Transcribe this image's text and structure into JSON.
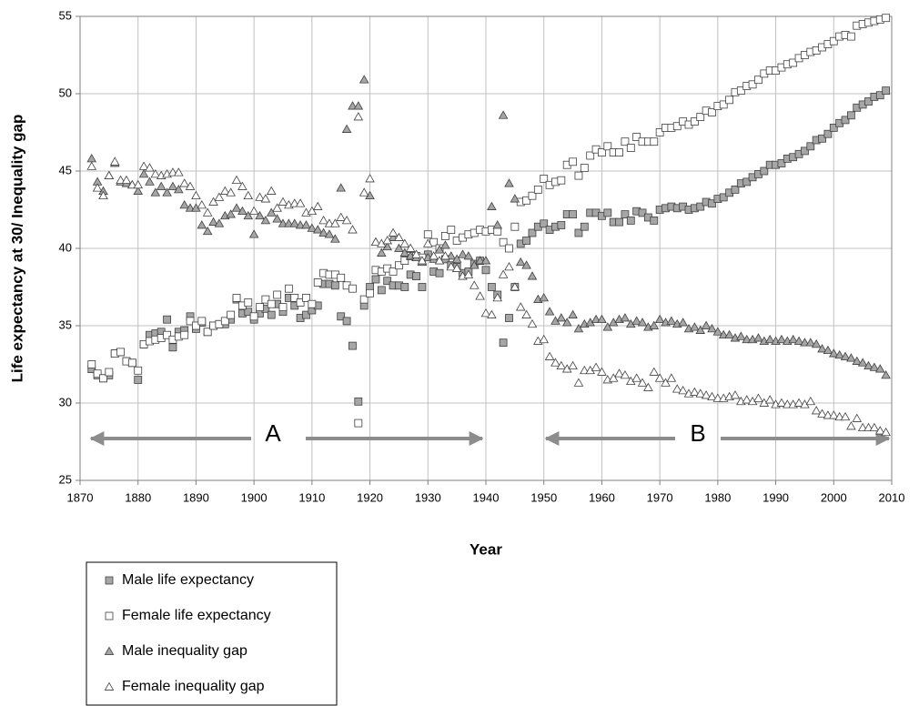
{
  "chart_data": {
    "type": "scatter",
    "x_label": "Year",
    "y_label": "Life expectancy at 30/ Inequality gap",
    "annotations": [
      "A",
      "B"
    ],
    "xlim": [
      1870,
      2010
    ],
    "xticks": [
      1870,
      1880,
      1890,
      1900,
      1910,
      1920,
      1930,
      1940,
      1950,
      1960,
      1970,
      1980,
      1990,
      2000,
      2010
    ],
    "ylim": [
      25,
      55
    ],
    "yticks": [
      25,
      30,
      35,
      40,
      45,
      50,
      55
    ],
    "grid": true,
    "legend": "bottom-left",
    "x": [
      1872,
      1873,
      1874,
      1875,
      1876,
      1877,
      1878,
      1879,
      1880,
      1881,
      1882,
      1883,
      1884,
      1885,
      1886,
      1887,
      1888,
      1889,
      1890,
      1891,
      1892,
      1893,
      1894,
      1895,
      1896,
      1897,
      1898,
      1899,
      1900,
      1901,
      1902,
      1903,
      1904,
      1905,
      1906,
      1907,
      1908,
      1909,
      1910,
      1911,
      1912,
      1913,
      1914,
      1915,
      1916,
      1917,
      1918,
      1919,
      1920,
      1921,
      1922,
      1923,
      1924,
      1925,
      1926,
      1927,
      1928,
      1929,
      1930,
      1931,
      1932,
      1933,
      1934,
      1935,
      1936,
      1937,
      1938,
      1939,
      1940,
      1941,
      1942,
      1943,
      1944,
      1945,
      1946,
      1947,
      1948,
      1949,
      1950,
      1951,
      1952,
      1953,
      1954,
      1955,
      1956,
      1957,
      1958,
      1959,
      1960,
      1961,
      1962,
      1963,
      1964,
      1965,
      1966,
      1967,
      1968,
      1969,
      1970,
      1971,
      1972,
      1973,
      1974,
      1975,
      1976,
      1977,
      1978,
      1979,
      1980,
      1981,
      1982,
      1983,
      1984,
      1985,
      1986,
      1987,
      1988,
      1989,
      1990,
      1991,
      1992,
      1993,
      1994,
      1995,
      1996,
      1997,
      1998,
      1999,
      2000,
      2001,
      2002,
      2003,
      2004,
      2005,
      2006,
      2007,
      2008,
      2009
    ],
    "series": [
      {
        "name": "Male life expectancy",
        "marker": "square",
        "color": "#a6a6a6",
        "values": [
          32.2,
          31.8,
          31.6,
          31.8,
          33.2,
          33.3,
          32.7,
          32.6,
          31.5,
          33.8,
          34.4,
          34.5,
          34.6,
          35.4,
          33.6,
          34.6,
          34.7,
          35.6,
          34.8,
          35.2,
          34.6,
          35.0,
          35.1,
          35.1,
          35.4,
          36.7,
          35.8,
          35.9,
          35.4,
          35.8,
          36.1,
          35.7,
          36.4,
          35.9,
          36.8,
          36.3,
          35.5,
          35.7,
          36.0,
          36.3,
          37.7,
          37.7,
          37.6,
          35.6,
          35.3,
          33.7,
          30.1,
          36.3,
          37.5,
          38.0,
          37.3,
          37.9,
          37.6,
          37.6,
          37.5,
          38.3,
          38.2,
          37.5,
          39.6,
          38.5,
          38.4,
          39.3,
          38.9,
          38.8,
          38.4,
          38.5,
          39.0,
          39.2,
          38.6,
          37.5,
          37.0,
          33.9,
          35.5,
          37.5,
          40.3,
          40.5,
          41.0,
          41.4,
          41.6,
          41.2,
          41.4,
          41.5,
          42.2,
          42.2,
          41.0,
          41.4,
          42.3,
          42.3,
          42.1,
          42.3,
          41.7,
          41.7,
          42.2,
          41.8,
          42.4,
          42.3,
          42.0,
          41.8,
          42.5,
          42.6,
          42.7,
          42.6,
          42.7,
          42.5,
          42.6,
          42.7,
          43.0,
          42.9,
          43.2,
          43.3,
          43.6,
          43.8,
          44.2,
          44.3,
          44.6,
          44.8,
          45.0,
          45.4,
          45.4,
          45.5,
          45.8,
          45.9,
          46.1,
          46.3,
          46.6,
          47.0,
          47.1,
          47.4,
          47.8,
          48.1,
          48.3,
          48.6,
          49.1,
          49.3,
          49.5,
          49.8,
          49.9,
          50.2
        ]
      },
      {
        "name": "Female life expectancy",
        "marker": "square",
        "color": "#ffffff",
        "values": [
          32.5,
          31.9,
          31.6,
          32.0,
          33.2,
          33.3,
          32.7,
          32.6,
          32.1,
          33.8,
          34.0,
          34.1,
          34.2,
          34.4,
          34.1,
          34.3,
          34.4,
          35.3,
          35.0,
          35.3,
          34.6,
          35.0,
          35.1,
          35.3,
          35.7,
          36.8,
          36.3,
          36.5,
          35.6,
          36.2,
          36.7,
          36.4,
          37.0,
          36.2,
          37.4,
          36.8,
          36.5,
          36.8,
          36.4,
          37.8,
          38.4,
          38.3,
          38.3,
          38.1,
          37.6,
          37.4,
          28.7,
          36.7,
          37.1,
          38.6,
          38.5,
          38.7,
          38.5,
          38.9,
          39.2,
          39.5,
          39.5,
          39.4,
          40.9,
          40.4,
          40.0,
          40.8,
          41.2,
          40.5,
          40.7,
          40.9,
          41.0,
          41.2,
          41.1,
          41.2,
          41.1,
          40.4,
          40.0,
          41.4,
          43.0,
          43.1,
          43.4,
          43.8,
          44.5,
          44.1,
          44.3,
          44.4,
          45.4,
          45.6,
          44.7,
          45.2,
          46.0,
          46.4,
          46.2,
          46.6,
          46.2,
          46.2,
          46.9,
          46.5,
          47.2,
          46.9,
          46.9,
          46.9,
          47.5,
          47.8,
          47.8,
          47.9,
          48.2,
          48.0,
          48.2,
          48.5,
          48.9,
          48.8,
          49.2,
          49.3,
          49.6,
          50.1,
          50.2,
          50.5,
          50.6,
          50.9,
          51.3,
          51.5,
          51.5,
          51.7,
          51.9,
          52.0,
          52.3,
          52.5,
          52.7,
          52.8,
          53.0,
          53.2,
          53.4,
          53.7,
          53.8,
          53.7,
          54.4,
          54.5,
          54.6,
          54.7,
          54.8,
          54.9
        ]
      },
      {
        "name": "Male inequality gap",
        "marker": "triangle",
        "color": "#a6a6a6",
        "values": [
          45.8,
          44.3,
          43.7,
          44.7,
          45.5,
          44.3,
          44.2,
          44.1,
          43.7,
          44.8,
          44.3,
          43.6,
          44.0,
          43.6,
          44.0,
          43.8,
          42.8,
          42.6,
          42.6,
          41.5,
          41.1,
          41.7,
          41.6,
          42.1,
          42.2,
          42.6,
          42.4,
          42.1,
          40.9,
          42.1,
          41.8,
          42.3,
          41.9,
          41.6,
          41.6,
          41.6,
          41.5,
          41.5,
          41.3,
          41.2,
          41.0,
          40.9,
          40.6,
          43.9,
          47.7,
          49.2,
          49.2,
          50.9,
          43.4,
          40.4,
          39.7,
          40.1,
          40.7,
          40.0,
          39.7,
          39.5,
          39.4,
          39.1,
          39.4,
          39.3,
          39.9,
          40.2,
          39.5,
          39.3,
          39.6,
          39.5,
          38.9,
          39.2,
          39.2,
          42.7,
          41.5,
          48.6,
          44.2,
          43.2,
          39.1,
          38.9,
          38.2,
          36.7,
          36.8,
          35.9,
          35.3,
          35.5,
          35.2,
          35.7,
          34.8,
          35.1,
          35.2,
          35.4,
          35.4,
          34.9,
          35.2,
          35.4,
          35.5,
          35.1,
          35.3,
          35.2,
          34.9,
          35.0,
          35.4,
          35.2,
          35.3,
          35.1,
          35.2,
          34.8,
          34.9,
          34.7,
          35.0,
          34.8,
          34.6,
          34.4,
          34.4,
          34.2,
          34.3,
          34.1,
          34.1,
          34.2,
          34.0,
          34.1,
          34.0,
          34.1,
          34.0,
          34.1,
          34.0,
          33.9,
          33.9,
          33.8,
          33.5,
          33.4,
          33.2,
          33.1,
          33.0,
          32.9,
          32.7,
          32.6,
          32.4,
          32.3,
          32.2,
          31.8
        ]
      },
      {
        "name": "Female inequality gap",
        "marker": "triangle",
        "color": "#ffffff",
        "values": [
          45.3,
          43.9,
          43.4,
          44.7,
          45.6,
          44.4,
          44.4,
          44.1,
          44.1,
          45.3,
          45.2,
          44.8,
          44.7,
          44.8,
          44.9,
          44.9,
          44.2,
          44.0,
          43.4,
          42.8,
          42.3,
          43.0,
          43.3,
          43.7,
          43.6,
          44.4,
          44.0,
          43.4,
          42.4,
          43.3,
          43.2,
          43.7,
          42.6,
          43.0,
          42.8,
          42.9,
          42.9,
          42.3,
          42.4,
          42.7,
          41.8,
          41.6,
          41.6,
          42.0,
          41.8,
          41.2,
          48.5,
          43.6,
          44.5,
          40.4,
          40.3,
          40.5,
          41.0,
          40.7,
          40.3,
          40.0,
          39.6,
          39.2,
          40.3,
          39.5,
          39.2,
          39.5,
          38.8,
          38.7,
          38.2,
          38.3,
          37.6,
          36.9,
          35.8,
          35.7,
          36.8,
          38.3,
          38.8,
          37.5,
          36.2,
          35.7,
          35.1,
          34.0,
          34.1,
          33.0,
          32.6,
          32.4,
          32.2,
          32.4,
          31.3,
          32.1,
          32.1,
          32.3,
          32.0,
          31.5,
          31.6,
          31.9,
          31.8,
          31.4,
          31.6,
          31.3,
          31.0,
          32.0,
          31.6,
          31.3,
          31.6,
          30.9,
          30.8,
          30.6,
          30.7,
          30.6,
          30.5,
          30.4,
          30.3,
          30.3,
          30.4,
          30.5,
          30.1,
          30.2,
          30.1,
          30.3,
          30.0,
          30.2,
          29.9,
          30.0,
          29.9,
          29.9,
          30.0,
          29.9,
          30.1,
          29.5,
          29.3,
          29.2,
          29.2,
          29.1,
          29.1,
          28.5,
          29.0,
          28.4,
          28.4,
          28.4,
          28.2,
          28.1
        ]
      }
    ]
  }
}
